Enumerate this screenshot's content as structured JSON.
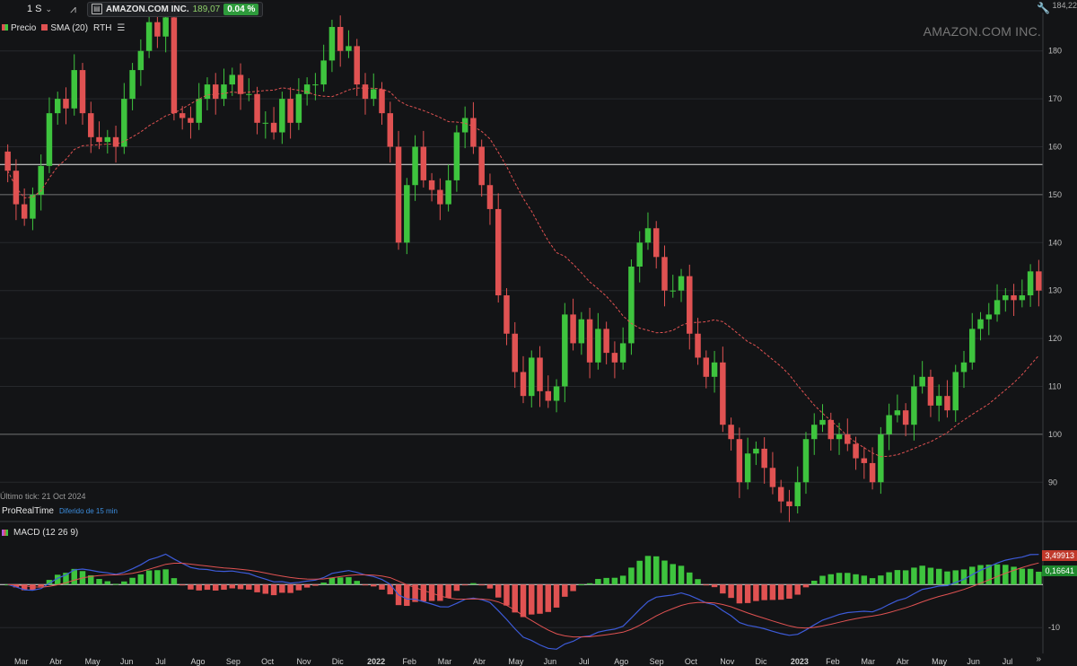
{
  "toolbar": {
    "timeframe": "1 S",
    "chart_icon": "chart-type-icon",
    "symbol_name": "AMAZON.COM INC.",
    "symbol_price": "189,07",
    "symbol_change": "0.04 %",
    "top_value": "184,22"
  },
  "legend": {
    "price_label": "Precio",
    "sma_label": "SMA (20)",
    "rth_label": "RTH",
    "list_icon": "list-icon"
  },
  "watermark": "AMAZON.COM INC.",
  "last_tick": "Último tick: 21 Oct 2024",
  "prorealtime": {
    "name": "ProRealTime",
    "delay": "Diferido de 15 min"
  },
  "macd": {
    "label": "MACD (12 26 9)",
    "macd_value": "3,49913",
    "hist_value": "0,16641"
  },
  "colors": {
    "up": "#3ec43e",
    "down": "#e05252",
    "sma": "#e05252",
    "background": "#131416",
    "macd_line": "#3d5bd9",
    "signal_line": "#e05252"
  },
  "chart_data": {
    "type": "candlestick",
    "title": "AMAZON.COM INC.",
    "period": "weekly",
    "ylim": [
      82,
      188
    ],
    "yticks": [
      90,
      100,
      110,
      120,
      130,
      140,
      150,
      160,
      170,
      180
    ],
    "horizontal_line": 156.3,
    "x_labels": [
      "Mar",
      "Abr",
      "May",
      "Jun",
      "Jul",
      "Ago",
      "Sep",
      "Oct",
      "Nov",
      "Dic",
      "2022",
      "Feb",
      "Mar",
      "Abr",
      "May",
      "Jun",
      "Jul",
      "Ago",
      "Sep",
      "Oct",
      "Nov",
      "Dic",
      "2023",
      "Feb",
      "Mar",
      "Abr",
      "May",
      "Jun",
      "Jul"
    ],
    "series": [
      {
        "name": "Precio",
        "type": "candlestick",
        "close": [
          155,
          148,
          145,
          150,
          156,
          167,
          170,
          168,
          176,
          167,
          162,
          161,
          162,
          160,
          170,
          176,
          180,
          186,
          183,
          187,
          167,
          166,
          165,
          170,
          173,
          170,
          173,
          175,
          171,
          171,
          165,
          165,
          163,
          170,
          165,
          171,
          173,
          173,
          178,
          185,
          180,
          181,
          173,
          170,
          172,
          167,
          160,
          140,
          152,
          160,
          153,
          151,
          148,
          153,
          163,
          166,
          160,
          152,
          147,
          129,
          121,
          113,
          108,
          116,
          109,
          107,
          110,
          125,
          119,
          124,
          115,
          122,
          117,
          115,
          119,
          135,
          140,
          143,
          137,
          130,
          130,
          133,
          121,
          116,
          112,
          115,
          102,
          99,
          90,
          96,
          97,
          93,
          89,
          86,
          85,
          90,
          99,
          102,
          103,
          99,
          100,
          98,
          95,
          94,
          90,
          100,
          104,
          105,
          102,
          110,
          112,
          106,
          108,
          105,
          113,
          115,
          122,
          124,
          125,
          128,
          129,
          128,
          129,
          134,
          130
        ],
        "sma20_note": "SMA (20) dashed overlay derived from close"
      }
    ],
    "macd": {
      "name": "MACD (12 26 9)",
      "last_macd": 3.49913,
      "last_histogram": 0.16641,
      "yticks": [
        -10
      ]
    }
  }
}
